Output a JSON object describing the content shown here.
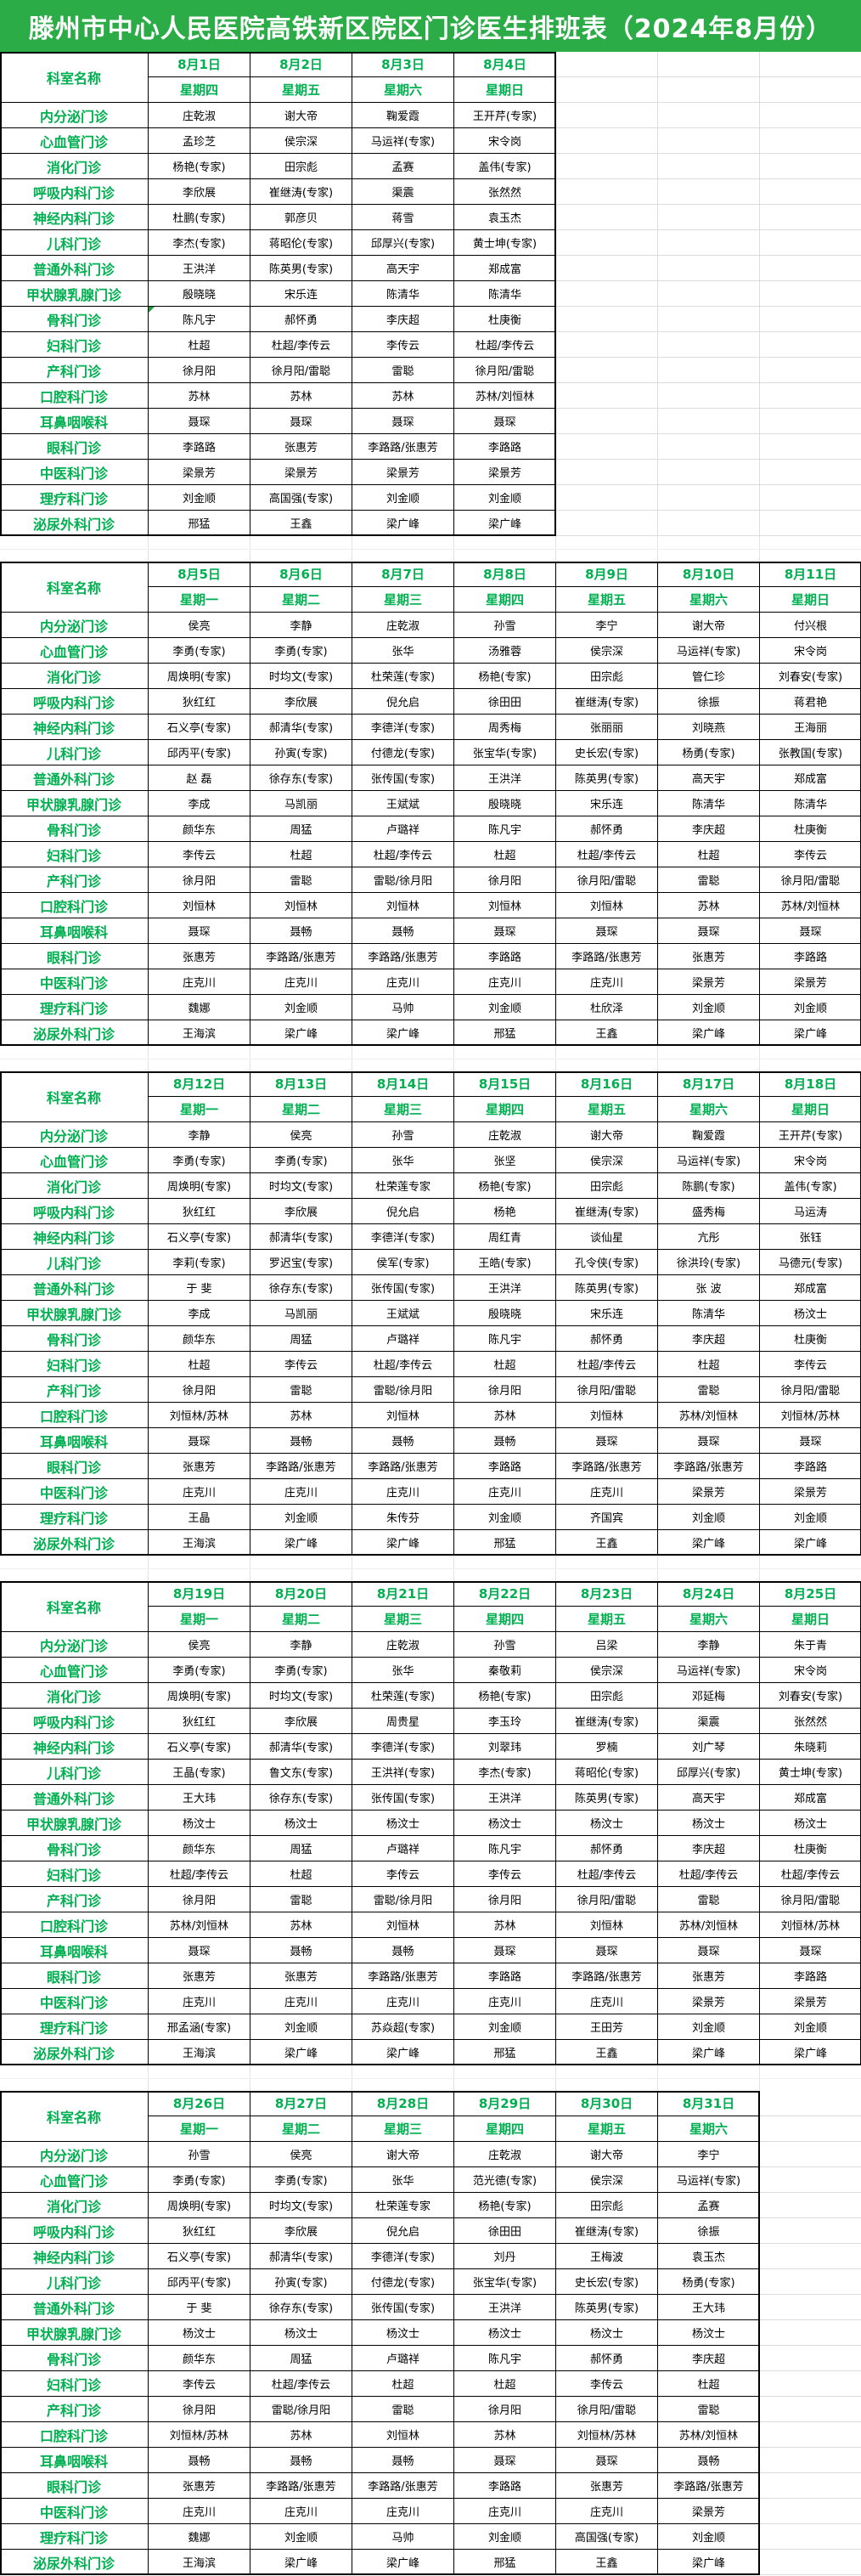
{
  "title": "滕州市中心人民医院高铁新区院区门诊医生排班表（2024年8月份）",
  "dept_header": "科室名称",
  "colors": {
    "title_bg": "#2BAC47",
    "green_text": "#00B050",
    "table_border": "#000000",
    "ghost_gridline": "#dcdcdc"
  },
  "comment_marker": {
    "week_index": 0,
    "row_index": 8,
    "col_index": 0
  },
  "weeks": [
    {
      "dates": [
        "8月1日",
        "8月2日",
        "8月3日",
        "8月4日"
      ],
      "weekdays": [
        "星期四",
        "星期五",
        "星期六",
        "星期日"
      ],
      "rows": [
        {
          "dept": "内分泌门诊",
          "cells": [
            "庄乾淑",
            "谢大帝",
            "鞠爱霞",
            "王开芹(专家)"
          ]
        },
        {
          "dept": "心血管门诊",
          "cells": [
            "孟珍芝",
            "侯宗深",
            "马运祥(专家)",
            "宋令岗"
          ]
        },
        {
          "dept": "消化门诊",
          "cells": [
            "杨艳(专家)",
            "田宗彪",
            "孟赛",
            "盖伟(专家)"
          ]
        },
        {
          "dept": "呼吸内科门诊",
          "cells": [
            "李欣展",
            "崔继涛(专家)",
            "渠震",
            "张然然"
          ]
        },
        {
          "dept": "神经内科门诊",
          "cells": [
            "杜鹏(专家)",
            "郭彦贝",
            "蒋雪",
            "袁玉杰"
          ]
        },
        {
          "dept": "儿科门诊",
          "cells": [
            "李杰(专家)",
            "蒋昭伦(专家)",
            "邱厚兴(专家)",
            "黄士坤(专家)"
          ]
        },
        {
          "dept": "普通外科门诊",
          "cells": [
            "王洪洋",
            "陈英男(专家)",
            "高天宇",
            "郑成富"
          ]
        },
        {
          "dept": "甲状腺乳腺门诊",
          "cells": [
            "殷晓晓",
            "宋乐连",
            "陈清华",
            "陈清华"
          ]
        },
        {
          "dept": "骨科门诊",
          "cells": [
            "陈凡宇",
            "郝怀勇",
            "李庆超",
            "杜庚衡"
          ]
        },
        {
          "dept": "妇科门诊",
          "cells": [
            "杜超",
            "杜超/李传云",
            "李传云",
            "杜超/李传云"
          ]
        },
        {
          "dept": "产科门诊",
          "cells": [
            "徐月阳",
            "徐月阳/雷聪",
            "雷聪",
            "徐月阳/雷聪"
          ]
        },
        {
          "dept": "口腔科门诊",
          "cells": [
            "苏林",
            "苏林",
            "苏林",
            "苏林/刘恒林"
          ]
        },
        {
          "dept": "耳鼻咽喉科",
          "cells": [
            "聂琛",
            "聂琛",
            "聂琛",
            "聂琛"
          ]
        },
        {
          "dept": "眼科门诊",
          "cells": [
            "李路路",
            "张惠芳",
            "李路路/张惠芳",
            "李路路"
          ]
        },
        {
          "dept": "中医科门诊",
          "cells": [
            "梁景芳",
            "梁景芳",
            "梁景芳",
            "梁景芳"
          ]
        },
        {
          "dept": "理疗科门诊",
          "cells": [
            "刘金顺",
            "高国强(专家)",
            "刘金顺",
            "刘金顺"
          ]
        },
        {
          "dept": "泌尿外科门诊",
          "cells": [
            "邢猛",
            "王鑫",
            "梁广峰",
            "梁广峰"
          ]
        }
      ]
    },
    {
      "dates": [
        "8月5日",
        "8月6日",
        "8月7日",
        "8月8日",
        "8月9日",
        "8月10日",
        "8月11日"
      ],
      "weekdays": [
        "星期一",
        "星期二",
        "星期三",
        "星期四",
        "星期五",
        "星期六",
        "星期日"
      ],
      "rows": [
        {
          "dept": "内分泌门诊",
          "cells": [
            "侯亮",
            "李静",
            "庄乾淑",
            "孙雪",
            "李宁",
            "谢大帝",
            "付兴根"
          ]
        },
        {
          "dept": "心血管门诊",
          "cells": [
            "李勇(专家)",
            "李勇(专家)",
            "张华",
            "汤雅蓉",
            "侯宗深",
            "马运祥(专家)",
            "宋令岗"
          ]
        },
        {
          "dept": "消化门诊",
          "cells": [
            "周焕明(专家)",
            "时均文(专家)",
            "杜荣莲(专家)",
            "杨艳(专家)",
            "田宗彪",
            "管仁珍",
            "刘春安(专家)"
          ]
        },
        {
          "dept": "呼吸内科门诊",
          "cells": [
            "狄红红",
            "李欣展",
            "倪允启",
            "徐田田",
            "崔继涛(专家)",
            "徐振",
            "蒋君艳"
          ]
        },
        {
          "dept": "神经内科门诊",
          "cells": [
            "石义亭(专家)",
            "郝清华(专家)",
            "李德洋(专家)",
            "周秀梅",
            "张丽丽",
            "刘晓燕",
            "王海丽"
          ]
        },
        {
          "dept": "儿科门诊",
          "cells": [
            "邱丙平(专家)",
            "孙寅(专家)",
            "付德龙(专家)",
            "张宝华(专家)",
            "史长宏(专家)",
            "杨勇(专家)",
            "张教国(专家)"
          ]
        },
        {
          "dept": "普通外科门诊",
          "cells": [
            "赵 磊",
            "徐存东(专家)",
            "张传国(专家)",
            "王洪洋",
            "陈英男(专家)",
            "高天宇",
            "郑成富"
          ]
        },
        {
          "dept": "甲状腺乳腺门诊",
          "cells": [
            "李成",
            "马凯丽",
            "王斌斌",
            "殷晓晓",
            "宋乐连",
            "陈清华",
            "陈清华"
          ]
        },
        {
          "dept": "骨科门诊",
          "cells": [
            "颜华东",
            "周猛",
            "卢璐祥",
            "陈凡宇",
            "郝怀勇",
            "李庆超",
            "杜庚衡"
          ]
        },
        {
          "dept": "妇科门诊",
          "cells": [
            "李传云",
            "杜超",
            "杜超/李传云",
            "杜超",
            "杜超/李传云",
            "杜超",
            "李传云"
          ]
        },
        {
          "dept": "产科门诊",
          "cells": [
            "徐月阳",
            "雷聪",
            "雷聪/徐月阳",
            "徐月阳",
            "徐月阳/雷聪",
            "雷聪",
            "徐月阳/雷聪"
          ]
        },
        {
          "dept": "口腔科门诊",
          "cells": [
            "刘恒林",
            "刘恒林",
            "刘恒林",
            "刘恒林",
            "刘恒林",
            "苏林",
            "苏林/刘恒林"
          ]
        },
        {
          "dept": "耳鼻咽喉科",
          "cells": [
            "聂琛",
            "聂畅",
            "聂畅",
            "聂琛",
            "聂琛",
            "聂琛",
            "聂琛"
          ]
        },
        {
          "dept": "眼科门诊",
          "cells": [
            "张惠芳",
            "李路路/张惠芳",
            "李路路/张惠芳",
            "李路路",
            "李路路/张惠芳",
            "张惠芳",
            "李路路"
          ]
        },
        {
          "dept": "中医科门诊",
          "cells": [
            "庄克川",
            "庄克川",
            "庄克川",
            "庄克川",
            "庄克川",
            "梁景芳",
            "梁景芳"
          ]
        },
        {
          "dept": "理疗科门诊",
          "cells": [
            "魏娜",
            "刘金顺",
            "马帅",
            "刘金顺",
            "杜欣泽",
            "刘金顺",
            "刘金顺"
          ]
        },
        {
          "dept": "泌尿外科门诊",
          "cells": [
            "王海滨",
            "梁广峰",
            "梁广峰",
            "邢猛",
            "王鑫",
            "梁广峰",
            "梁广峰"
          ]
        }
      ]
    },
    {
      "dates": [
        "8月12日",
        "8月13日",
        "8月14日",
        "8月15日",
        "8月16日",
        "8月17日",
        "8月18日"
      ],
      "weekdays": [
        "星期一",
        "星期二",
        "星期三",
        "星期四",
        "星期五",
        "星期六",
        "星期日"
      ],
      "rows": [
        {
          "dept": "内分泌门诊",
          "cells": [
            "李静",
            "侯亮",
            "孙雪",
            "庄乾淑",
            "谢大帝",
            "鞠爱霞",
            "王开芹(专家)"
          ]
        },
        {
          "dept": "心血管门诊",
          "cells": [
            "李勇(专家)",
            "李勇(专家)",
            "张华",
            "张坚",
            "侯宗深",
            "马运祥(专家)",
            "宋令岗"
          ]
        },
        {
          "dept": "消化门诊",
          "cells": [
            "周焕明(专家)",
            "时均文(专家)",
            "杜荣莲专家",
            "杨艳(专家)",
            "田宗彪",
            "陈鹏(专家)",
            "盖伟(专家)"
          ]
        },
        {
          "dept": "呼吸内科门诊",
          "cells": [
            "狄红红",
            "李欣展",
            "倪允启",
            "杨艳",
            "崔继涛(专家)",
            "盛秀梅",
            "马运涛"
          ]
        },
        {
          "dept": "神经内科门诊",
          "cells": [
            "石义亭(专家)",
            "郝清华(专家)",
            "李德洋(专家)",
            "周红青",
            "谈仙星",
            "亢彤",
            "张钰"
          ]
        },
        {
          "dept": "儿科门诊",
          "cells": [
            "李莉(专家)",
            "罗迟宝(专家)",
            "侯军(专家)",
            "王皓(专家)",
            "孔令侠(专家)",
            "徐洪玲(专家)",
            "马德元(专家)"
          ]
        },
        {
          "dept": "普通外科门诊",
          "cells": [
            "于 斐",
            "徐存东(专家)",
            "张传国(专家)",
            "王洪洋",
            "陈英男(专家)",
            "张 波",
            "郑成富"
          ]
        },
        {
          "dept": "甲状腺乳腺门诊",
          "cells": [
            "李成",
            "马凯丽",
            "王斌斌",
            "殷晓晓",
            "宋乐连",
            "陈清华",
            "杨汶士"
          ]
        },
        {
          "dept": "骨科门诊",
          "cells": [
            "颜华东",
            "周猛",
            "卢璐祥",
            "陈凡宇",
            "郝怀勇",
            "李庆超",
            "杜庚衡"
          ]
        },
        {
          "dept": "妇科门诊",
          "cells": [
            "杜超",
            "李传云",
            "杜超/李传云",
            "杜超",
            "杜超/李传云",
            "杜超",
            "李传云"
          ]
        },
        {
          "dept": "产科门诊",
          "cells": [
            "徐月阳",
            "雷聪",
            "雷聪/徐月阳",
            "徐月阳",
            "徐月阳/雷聪",
            "雷聪",
            "徐月阳/雷聪"
          ]
        },
        {
          "dept": "口腔科门诊",
          "cells": [
            "刘恒林/苏林",
            "苏林",
            "刘恒林",
            "苏林",
            "刘恒林",
            "苏林/刘恒林",
            "刘恒林/苏林"
          ]
        },
        {
          "dept": "耳鼻咽喉科",
          "cells": [
            "聂琛",
            "聂畅",
            "聂畅",
            "聂畅",
            "聂琛",
            "聂琛",
            "聂琛"
          ]
        },
        {
          "dept": "眼科门诊",
          "cells": [
            "张惠芳",
            "李路路/张惠芳",
            "李路路/张惠芳",
            "李路路",
            "李路路/张惠芳",
            "李路路/张惠芳",
            "李路路"
          ]
        },
        {
          "dept": "中医科门诊",
          "cells": [
            "庄克川",
            "庄克川",
            "庄克川",
            "庄克川",
            "庄克川",
            "梁景芳",
            "梁景芳"
          ]
        },
        {
          "dept": "理疗科门诊",
          "cells": [
            "王晶",
            "刘金顺",
            "朱传芬",
            "刘金顺",
            "齐国宾",
            "刘金顺",
            "刘金顺"
          ]
        },
        {
          "dept": "泌尿外科门诊",
          "cells": [
            "王海滨",
            "梁广峰",
            "梁广峰",
            "邢猛",
            "王鑫",
            "梁广峰",
            "梁广峰"
          ]
        }
      ]
    },
    {
      "dates": [
        "8月19日",
        "8月20日",
        "8月21日",
        "8月22日",
        "8月23日",
        "8月24日",
        "8月25日"
      ],
      "weekdays": [
        "星期一",
        "星期二",
        "星期三",
        "星期四",
        "星期五",
        "星期六",
        "星期日"
      ],
      "rows": [
        {
          "dept": "内分泌门诊",
          "cells": [
            "侯亮",
            "李静",
            "庄乾淑",
            "孙雪",
            "吕梁",
            "李静",
            "朱于青"
          ]
        },
        {
          "dept": "心血管门诊",
          "cells": [
            "李勇(专家)",
            "李勇(专家)",
            "张华",
            "秦敬莉",
            "侯宗深",
            "马运祥(专家)",
            "宋令岗"
          ]
        },
        {
          "dept": "消化门诊",
          "cells": [
            "周焕明(专家)",
            "时均文(专家)",
            "杜荣莲(专家)",
            "杨艳(专家)",
            "田宗彪",
            "邓延梅",
            "刘春安(专家)"
          ]
        },
        {
          "dept": "呼吸内科门诊",
          "cells": [
            "狄红红",
            "李欣展",
            "周贵星",
            "李玉玲",
            "崔继涛(专家)",
            "渠震",
            "张然然"
          ]
        },
        {
          "dept": "神经内科门诊",
          "cells": [
            "石义亭(专家)",
            "郝清华(专家)",
            "李德洋(专家)",
            "刘翠玮",
            "罗楠",
            "刘广琴",
            "朱晓莉"
          ]
        },
        {
          "dept": "儿科门诊",
          "cells": [
            "王晶(专家)",
            "鲁文东(专家)",
            "王洪祥(专家)",
            "李杰(专家)",
            "蒋昭伦(专家)",
            "邱厚兴(专家)",
            "黄士坤(专家)"
          ]
        },
        {
          "dept": "普通外科门诊",
          "cells": [
            "王大玮",
            "徐存东(专家)",
            "张传国(专家)",
            "王洪洋",
            "陈英男(专家)",
            "高天宇",
            "郑成富"
          ]
        },
        {
          "dept": "甲状腺乳腺门诊",
          "cells": [
            "杨汶士",
            "杨汶士",
            "杨汶士",
            "杨汶士",
            "杨汶士",
            "杨汶士",
            "杨汶士"
          ]
        },
        {
          "dept": "骨科门诊",
          "cells": [
            "颜华东",
            "周猛",
            "卢璐祥",
            "陈凡宇",
            "郝怀勇",
            "李庆超",
            "杜庚衡"
          ]
        },
        {
          "dept": "妇科门诊",
          "cells": [
            "杜超/李传云",
            "杜超",
            "李传云",
            "李传云",
            "杜超/李传云",
            "杜超/李传云",
            "杜超/李传云"
          ]
        },
        {
          "dept": "产科门诊",
          "cells": [
            "徐月阳",
            "雷聪",
            "雷聪/徐月阳",
            "徐月阳",
            "徐月阳/雷聪",
            "雷聪",
            "徐月阳/雷聪"
          ]
        },
        {
          "dept": "口腔科门诊",
          "cells": [
            "苏林/刘恒林",
            "苏林",
            "刘恒林",
            "苏林",
            "刘恒林",
            "苏林/刘恒林",
            "刘恒林/苏林"
          ]
        },
        {
          "dept": "耳鼻咽喉科",
          "cells": [
            "聂琛",
            "聂畅",
            "聂畅",
            "聂琛",
            "聂琛",
            "聂琛",
            "聂琛"
          ]
        },
        {
          "dept": "眼科门诊",
          "cells": [
            "张惠芳",
            "张惠芳",
            "李路路/张惠芳",
            "李路路",
            "李路路/张惠芳",
            "张惠芳",
            "李路路"
          ]
        },
        {
          "dept": "中医科门诊",
          "cells": [
            "庄克川",
            "庄克川",
            "庄克川",
            "庄克川",
            "庄克川",
            "梁景芳",
            "梁景芳"
          ]
        },
        {
          "dept": "理疗科门诊",
          "cells": [
            "邢孟涵(专家)",
            "刘金顺",
            "苏焱超(专家)",
            "刘金顺",
            "王田芳",
            "刘金顺",
            "刘金顺"
          ]
        },
        {
          "dept": "泌尿外科门诊",
          "cells": [
            "王海滨",
            "梁广峰",
            "梁广峰",
            "邢猛",
            "王鑫",
            "梁广峰",
            "梁广峰"
          ]
        }
      ]
    },
    {
      "dates": [
        "8月26日",
        "8月27日",
        "8月28日",
        "8月29日",
        "8月30日",
        "8月31日"
      ],
      "weekdays": [
        "星期一",
        "星期二",
        "星期三",
        "星期四",
        "星期五",
        "星期六"
      ],
      "rows": [
        {
          "dept": "内分泌门诊",
          "cells": [
            "孙雪",
            "侯亮",
            "谢大帝",
            "庄乾淑",
            "谢大帝",
            "李宁"
          ]
        },
        {
          "dept": "心血管门诊",
          "cells": [
            "李勇(专家)",
            "李勇(专家)",
            "张华",
            "范光德(专家)",
            "侯宗深",
            "马运祥(专家)"
          ]
        },
        {
          "dept": "消化门诊",
          "cells": [
            "周焕明(专家)",
            "时均文(专家)",
            "杜荣莲专家",
            "杨艳(专家)",
            "田宗彪",
            "孟赛"
          ]
        },
        {
          "dept": "呼吸内科门诊",
          "cells": [
            "狄红红",
            "李欣展",
            "倪允启",
            "徐田田",
            "崔继涛(专家)",
            "徐振"
          ]
        },
        {
          "dept": "神经内科门诊",
          "cells": [
            "石义亭(专家)",
            "郝清华(专家)",
            "李德洋(专家)",
            "刘丹",
            "王梅波",
            "袁玉杰"
          ]
        },
        {
          "dept": "儿科门诊",
          "cells": [
            "邱丙平(专家)",
            "孙寅(专家)",
            "付德龙(专家)",
            "张宝华(专家)",
            "史长宏(专家)",
            "杨勇(专家)"
          ]
        },
        {
          "dept": "普通外科门诊",
          "cells": [
            "于 斐",
            "徐存东(专家)",
            "张传国(专家)",
            "王洪洋",
            "陈英男(专家)",
            "王大玮"
          ]
        },
        {
          "dept": "甲状腺乳腺门诊",
          "cells": [
            "杨汶士",
            "杨汶士",
            "杨汶士",
            "杨汶士",
            "杨汶士",
            "杨汶士"
          ]
        },
        {
          "dept": "骨科门诊",
          "cells": [
            "颜华东",
            "周猛",
            "卢璐祥",
            "陈凡宇",
            "郝怀勇",
            "李庆超"
          ]
        },
        {
          "dept": "妇科门诊",
          "cells": [
            "李传云",
            "杜超/李传云",
            "杜超",
            "杜超",
            "李传云",
            "杜超"
          ]
        },
        {
          "dept": "产科门诊",
          "cells": [
            "徐月阳",
            "雷聪/徐月阳",
            "雷聪",
            "徐月阳",
            "徐月阳/雷聪",
            "雷聪"
          ]
        },
        {
          "dept": "口腔科门诊",
          "cells": [
            "刘恒林/苏林",
            "苏林",
            "刘恒林",
            "苏林",
            "刘恒林/苏林",
            "苏林/刘恒林"
          ]
        },
        {
          "dept": "耳鼻咽喉科",
          "cells": [
            "聂畅",
            "聂畅",
            "聂畅",
            "聂琛",
            "聂琛",
            "聂畅"
          ]
        },
        {
          "dept": "眼科门诊",
          "cells": [
            "张惠芳",
            "李路路/张惠芳",
            "李路路/张惠芳",
            "李路路",
            "张惠芳",
            "李路路/张惠芳"
          ]
        },
        {
          "dept": "中医科门诊",
          "cells": [
            "庄克川",
            "庄克川",
            "庄克川",
            "庄克川",
            "庄克川",
            "梁景芳"
          ]
        },
        {
          "dept": "理疗科门诊",
          "cells": [
            "魏娜",
            "刘金顺",
            "马帅",
            "刘金顺",
            "高国强(专家)",
            "刘金顺"
          ]
        },
        {
          "dept": "泌尿外科门诊",
          "cells": [
            "王海滨",
            "梁广峰",
            "梁广峰",
            "邢猛",
            "王鑫",
            "梁广峰"
          ]
        }
      ]
    }
  ]
}
